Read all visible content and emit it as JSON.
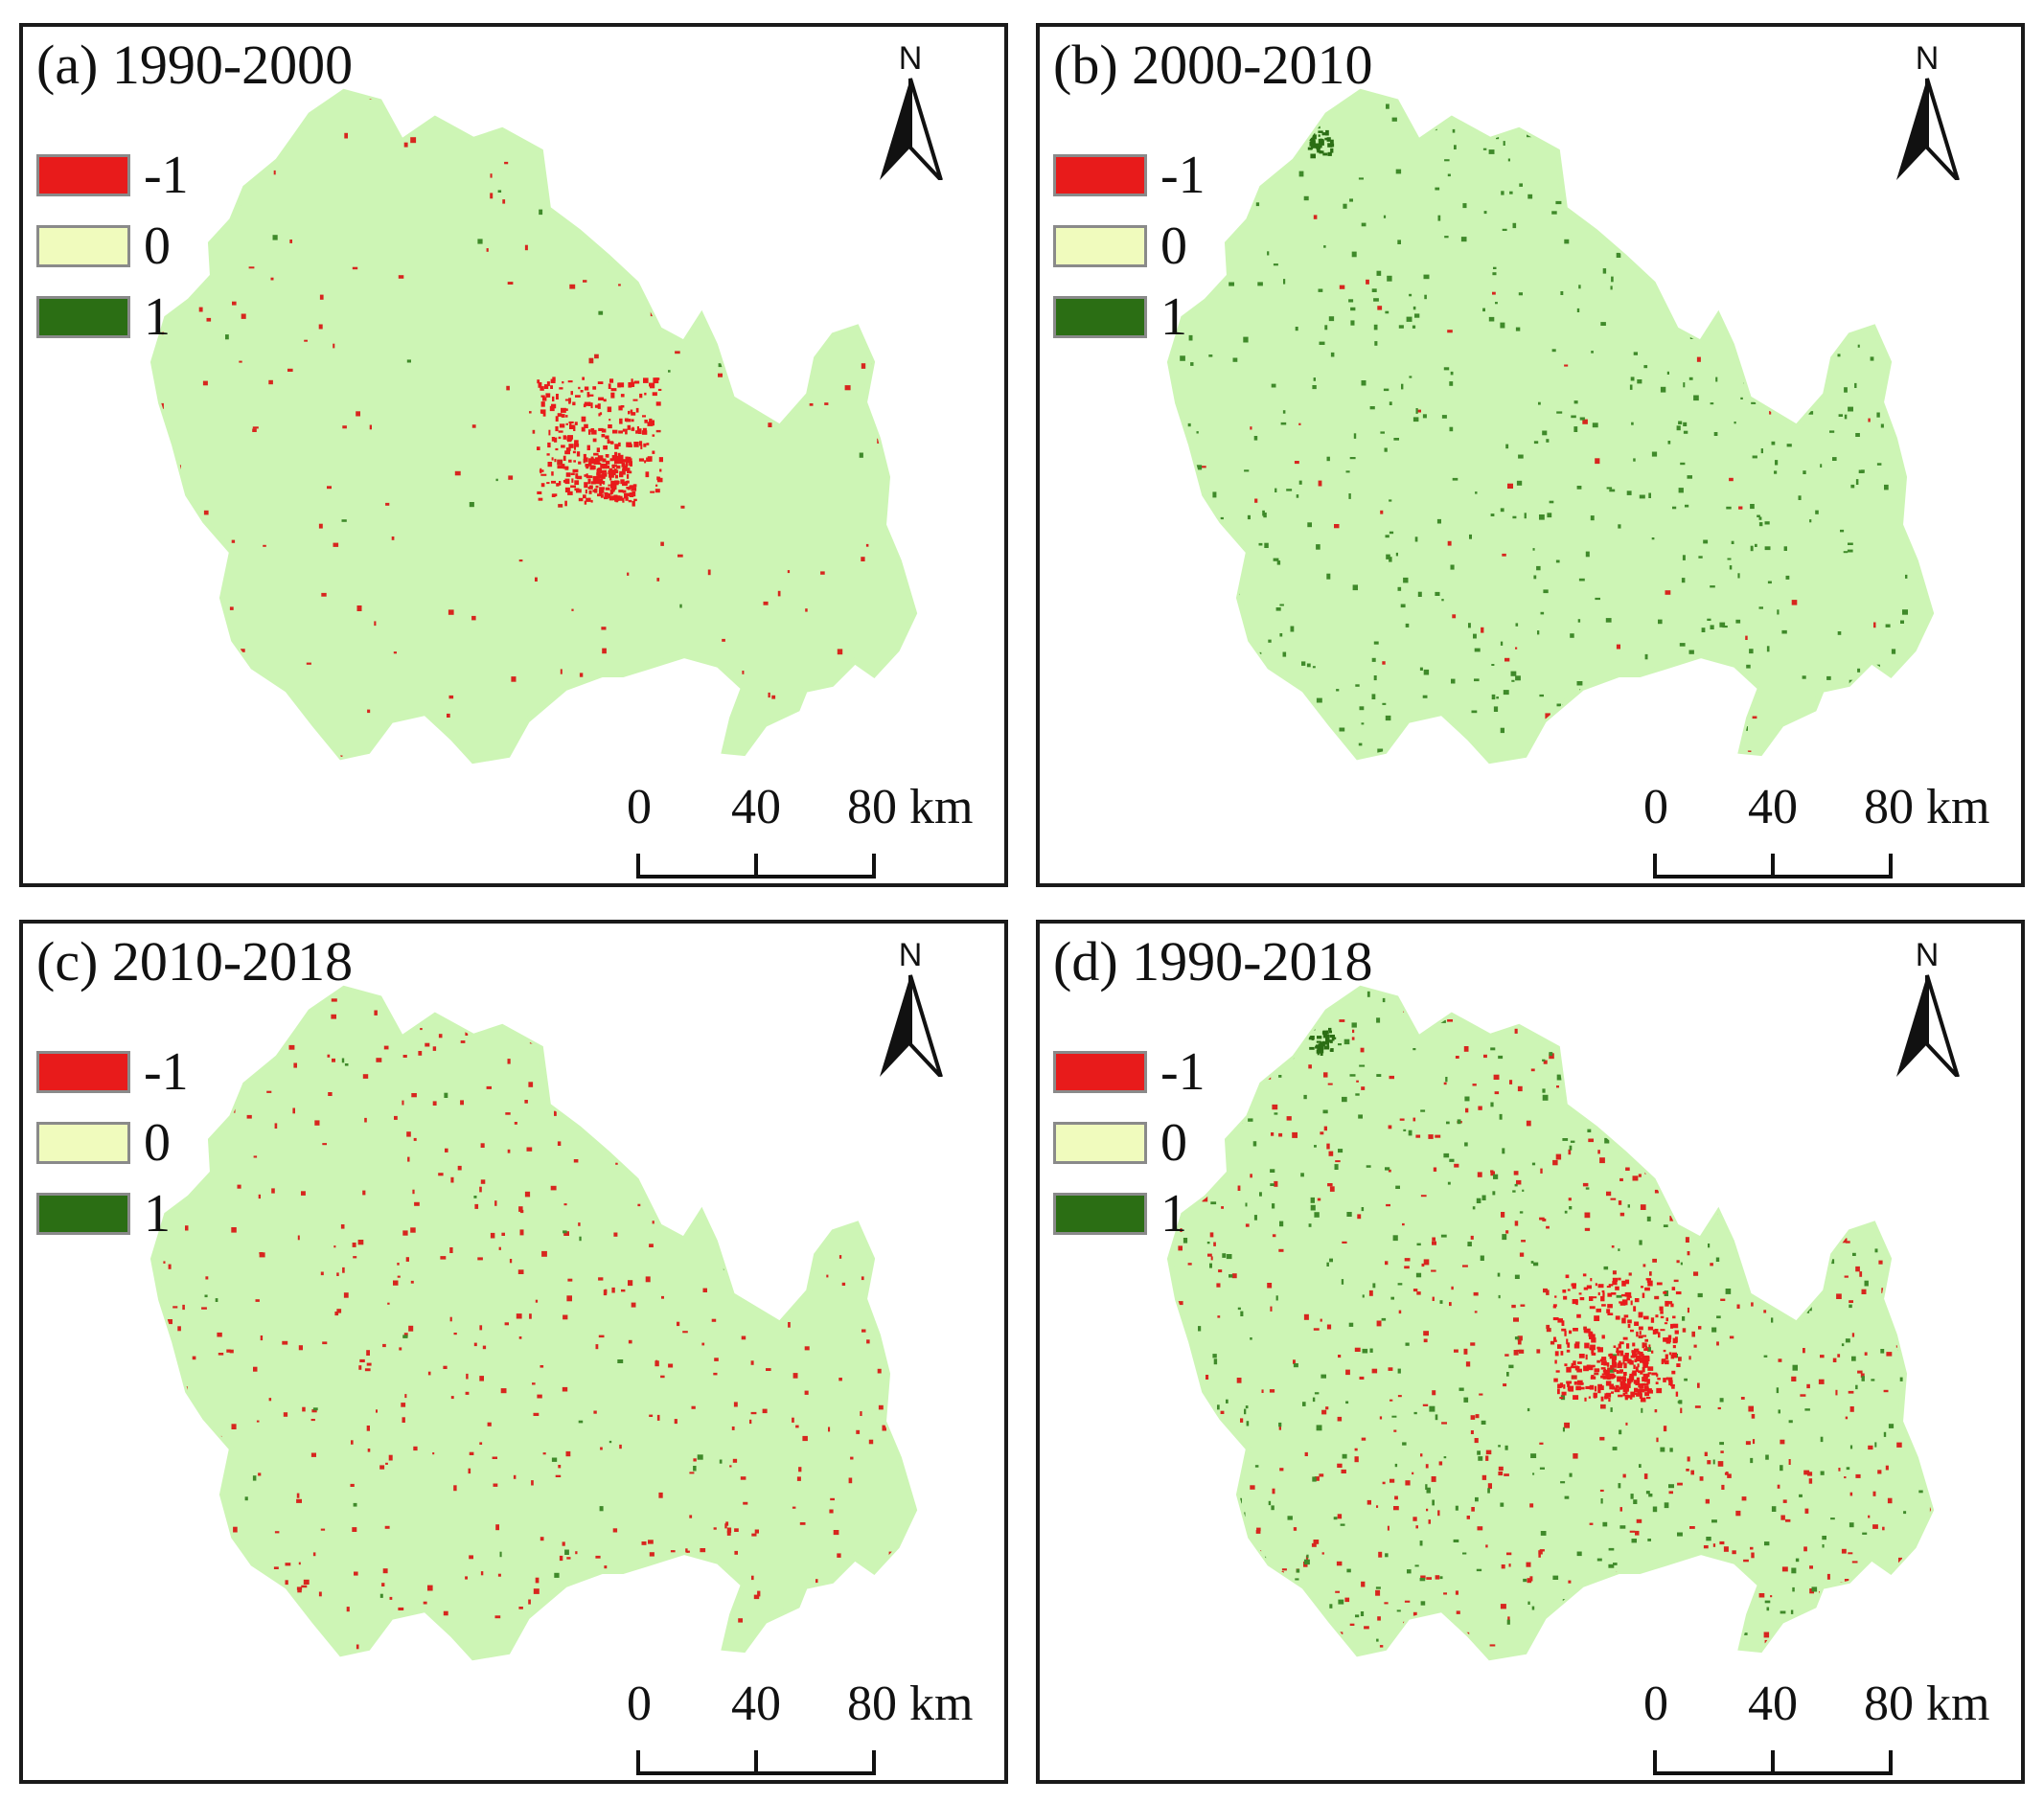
{
  "colors": {
    "decrease": "#e81b1b",
    "nochange": "#f0fbbd",
    "increase": "#2b6e14",
    "region_fill": "#cdf5b5",
    "speckle_green": "#3f8a2a",
    "speckle_red": "#d7261e"
  },
  "legend": [
    {
      "label": "-1",
      "color_key": "decrease"
    },
    {
      "label": "0",
      "color_key": "nochange"
    },
    {
      "label": "1",
      "color_key": "increase"
    }
  ],
  "north_label": "N",
  "scale": {
    "ticks": [
      "0",
      "40",
      "80 km"
    ]
  },
  "panels": [
    {
      "id": "a",
      "title": "(a) 1990-2000"
    },
    {
      "id": "b",
      "title": "(b) 2000-2010"
    },
    {
      "id": "c",
      "title": "(c) 2010-2018"
    },
    {
      "id": "d",
      "title": "(d) 1990-2018"
    }
  ]
}
